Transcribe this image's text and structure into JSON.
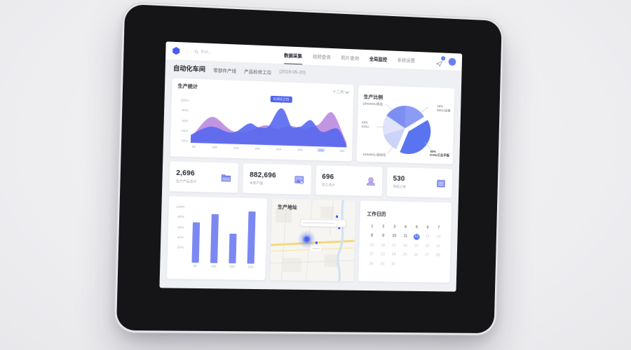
{
  "header": {
    "search_placeholder": "find...",
    "tabs": [
      {
        "label": "数据采集",
        "active": true
      },
      {
        "label": "视频查询"
      },
      {
        "label": "照片查询"
      },
      {
        "label": "全局监控",
        "bold": true
      },
      {
        "label": "系统设置"
      }
    ],
    "notification_badge": "3"
  },
  "breadcrumb": {
    "title": "自动化车间",
    "links": [
      "零部件产线",
      "产品检修工位"
    ],
    "date": "(2019-05-20)"
  },
  "stat_cards": [
    {
      "value": "2,696",
      "label": "生产产品总计",
      "icon": "folder-icon"
    },
    {
      "value": "882,696",
      "label": "本周产值",
      "icon": "image-icon"
    },
    {
      "value": "696",
      "label": "员工总计",
      "icon": "person-icon"
    },
    {
      "value": "530",
      "label": "完成订单",
      "icon": "calendar-icon"
    }
  ],
  "map_card": {
    "title": "生产地址"
  },
  "calendar": {
    "title": "工作日历",
    "days": [
      {
        "n": "1"
      },
      {
        "n": "2"
      },
      {
        "n": "3"
      },
      {
        "n": "4"
      },
      {
        "n": "5"
      },
      {
        "n": "6"
      },
      {
        "n": "7"
      },
      {
        "n": "8"
      },
      {
        "n": "9"
      },
      {
        "n": "10"
      },
      {
        "n": "11"
      },
      {
        "n": "12",
        "state": "selected"
      },
      {
        "n": "13",
        "state": "muted"
      },
      {
        "n": "14",
        "state": "muted"
      },
      {
        "n": "15",
        "state": "muted"
      },
      {
        "n": "16",
        "state": "muted"
      },
      {
        "n": "17",
        "state": "muted"
      },
      {
        "n": "18",
        "state": "muted"
      },
      {
        "n": "19",
        "state": "muted"
      },
      {
        "n": "20",
        "state": "muted"
      },
      {
        "n": "21",
        "state": "muted"
      },
      {
        "n": "22",
        "state": "muted"
      },
      {
        "n": "23",
        "state": "muted"
      },
      {
        "n": "24",
        "state": "muted"
      },
      {
        "n": "25",
        "state": "muted"
      },
      {
        "n": "26",
        "state": "muted"
      },
      {
        "n": "27",
        "state": "muted"
      },
      {
        "n": "28",
        "state": "muted"
      },
      {
        "n": "29",
        "state": "muted"
      },
      {
        "n": "30",
        "state": "muted"
      },
      {
        "n": "31",
        "state": "muted"
      }
    ]
  },
  "chart_data": [
    {
      "type": "area",
      "title": "生产统计",
      "period_selector": "十二月",
      "x": [
        "5K",
        "10K",
        "15K",
        "20K",
        "25K",
        "30K",
        "35K",
        "40K"
      ],
      "x_ticks": [
        {
          "label": "5K"
        },
        {
          "label": "10K"
        },
        {
          "label": "15K"
        },
        {
          "label": "20K"
        },
        {
          "label": "25K"
        },
        {
          "label": "30K"
        },
        {
          "label": "35K",
          "active": true
        },
        {
          "label": "40K"
        }
      ],
      "y_ticks": [
        "100%",
        "80%",
        "60%",
        "40%",
        "20%"
      ],
      "ylim": [
        0,
        100
      ],
      "series": [
        {
          "name": "purple-series",
          "color": "#bd8ce0",
          "values": [
            25,
            60,
            30,
            40,
            45,
            42,
            35,
            78
          ]
        },
        {
          "name": "blue-series",
          "color": "#5868ef",
          "values": [
            20,
            35,
            30,
            50,
            88,
            45,
            60,
            25
          ]
        }
      ],
      "tooltip": {
        "value": "6,563,215"
      },
      "legend": "none",
      "grid": "off"
    },
    {
      "type": "pie",
      "title": "生产比例",
      "slices": [
        {
          "pct": "16%",
          "name": "IMSU组合",
          "value": 16,
          "color": "#7d8ef2"
        },
        {
          "pct": "16%",
          "name": "IMSU设备",
          "value": 16,
          "color": "#8c9cf5"
        },
        {
          "pct": "40%",
          "name": "IOSU工业平板",
          "value": 40,
          "color": "#5a74f0",
          "exploded": true
        },
        {
          "pct": "14%",
          "name": "IMSU自动化",
          "value": 14,
          "color": "#ccd3f8"
        },
        {
          "pct": "14%",
          "name": "IOSU",
          "value": 14,
          "color": "#dfe4fb"
        }
      ],
      "legend": "labels-with-leader-lines"
    },
    {
      "type": "bar",
      "title": "",
      "categories": [
        "5K",
        "10K",
        "15K",
        "20K"
      ],
      "values": [
        68,
        82,
        50,
        88
      ],
      "y_ticks": [
        "100%",
        "80%",
        "60%",
        "40%",
        "20%"
      ],
      "ylim": [
        0,
        100
      ],
      "bar_color": "#7c88f2",
      "bars": [
        {
          "label": "5K",
          "v": 68
        },
        {
          "label": "10K",
          "v": 82
        },
        {
          "label": "15K",
          "v": 50
        },
        {
          "label": "20K",
          "v": 88
        }
      ],
      "grid": "off"
    }
  ]
}
